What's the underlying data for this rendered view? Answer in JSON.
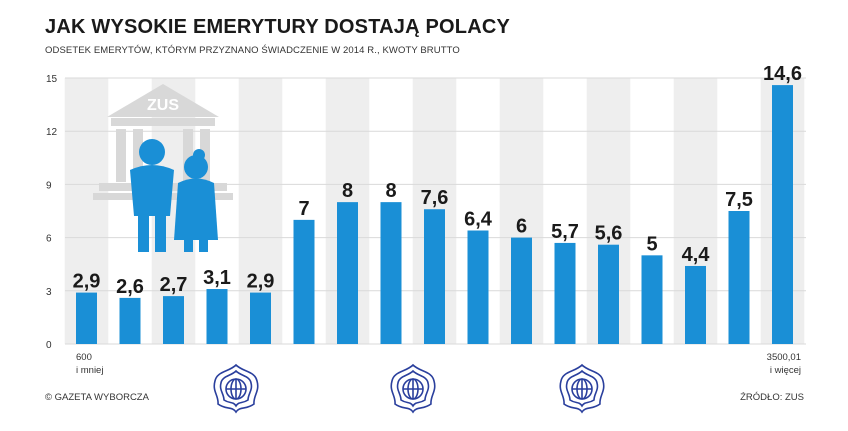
{
  "header": {
    "title": "JAK WYSOKIE EMERYTURY DOSTAJĄ POLACY",
    "subtitle": "ODSETEK EMERYTÓW, KTÓRYM PRZYZNANO ŚWIADCZENIE W 2014 R., KWOTY BRUTTO"
  },
  "footer": {
    "left": "© GAZETA WYBORCZA",
    "right": "ŹRÓDŁO: ZUS"
  },
  "illustration": {
    "building_label": "ZUS"
  },
  "colors": {
    "bar": "#1a8fd6",
    "grid": "#d9d9d9",
    "background_band": "#eeeeee",
    "illustration": "#1a8fd6"
  },
  "chart_data": {
    "type": "bar",
    "values": [
      2.9,
      2.6,
      2.7,
      3.1,
      2.9,
      7,
      8,
      8,
      7.6,
      6.4,
      6,
      5.7,
      5.6,
      5,
      4.4,
      7.5,
      14.6
    ],
    "value_labels": [
      "2,9",
      "2,6",
      "2,7",
      "3,1",
      "2,9",
      "7",
      "8",
      "8",
      "7,6",
      "6,4",
      "6",
      "5,7",
      "5,6",
      "5",
      "4,4",
      "7,5",
      "14,6"
    ],
    "category_labels": [
      {
        "index": 0,
        "lines": [
          "600",
          "i mniej"
        ]
      },
      {
        "index": 16,
        "lines": [
          "3500,01",
          "i więcej"
        ]
      }
    ],
    "ylim": [
      0,
      15
    ],
    "yticks": [
      0,
      3,
      6,
      9,
      12,
      15
    ],
    "grid": true
  }
}
